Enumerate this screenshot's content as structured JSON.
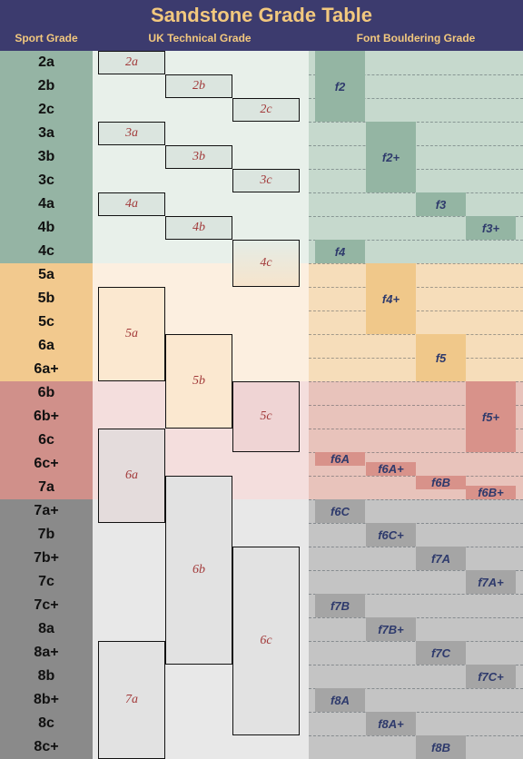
{
  "title": "Sandstone Grade Table",
  "headers": {
    "sport": "Sport Grade",
    "uk": "UK Technical Grade",
    "font": "Font Bouldering Grade"
  },
  "sport_grades": [
    "2a",
    "2b",
    "2c",
    "3a",
    "3b",
    "3c",
    "4a",
    "4b",
    "4c",
    "5a",
    "5b",
    "5c",
    "6a",
    "6a+",
    "6b",
    "6b+",
    "6c",
    "6c+",
    "7a",
    "7a+",
    "7b",
    "7b+",
    "7c",
    "7c+",
    "8a",
    "8a+",
    "8b",
    "8b+",
    "8c",
    "8c+"
  ],
  "uk_grades": [
    {
      "label": "2a",
      "col": 0,
      "start": 0,
      "end": 0
    },
    {
      "label": "2b",
      "col": 1,
      "start": 1,
      "end": 1
    },
    {
      "label": "2c",
      "col": 2,
      "start": 2,
      "end": 2
    },
    {
      "label": "3a",
      "col": 0,
      "start": 3,
      "end": 3
    },
    {
      "label": "3b",
      "col": 1,
      "start": 4,
      "end": 4
    },
    {
      "label": "3c",
      "col": 2,
      "start": 5,
      "end": 5
    },
    {
      "label": "4a",
      "col": 0,
      "start": 6,
      "end": 6
    },
    {
      "label": "4b",
      "col": 1,
      "start": 7,
      "end": 7
    },
    {
      "label": "4c",
      "col": 2,
      "start": 8,
      "end": 9
    },
    {
      "label": "5a",
      "col": 0,
      "start": 10,
      "end": 13
    },
    {
      "label": "5b",
      "col": 1,
      "start": 12,
      "end": 15
    },
    {
      "label": "5c",
      "col": 2,
      "start": 14,
      "end": 16
    },
    {
      "label": "6a",
      "col": 0,
      "start": 16,
      "end": 19
    },
    {
      "label": "6b",
      "col": 1,
      "start": 18,
      "end": 25
    },
    {
      "label": "6c",
      "col": 2,
      "start": 21,
      "end": 28
    },
    {
      "label": "7a",
      "col": 0,
      "start": 25,
      "end": 29
    }
  ],
  "font_grades": [
    {
      "label": "f2",
      "col": 0,
      "start": 0,
      "end": 2
    },
    {
      "label": "f2+",
      "col": 1,
      "start": 3,
      "end": 5
    },
    {
      "label": "f3",
      "col": 2,
      "start": 6,
      "end": 6
    },
    {
      "label": "f3+",
      "col": 3,
      "start": 7,
      "end": 7
    },
    {
      "label": "f4",
      "col": 0,
      "start": 8,
      "end": 8
    },
    {
      "label": "f4+",
      "col": 1,
      "start": 9,
      "end": 11
    },
    {
      "label": "f5",
      "col": 2,
      "start": 12,
      "end": 13
    },
    {
      "label": "f5+",
      "col": 3,
      "start": 14,
      "end": 16
    },
    {
      "label": "f6A",
      "col": 0,
      "start": 17,
      "end": 17,
      "half": "top"
    },
    {
      "label": "f6A+",
      "col": 1,
      "start": 17,
      "end": 17,
      "half": "bottom"
    },
    {
      "label": "f6B",
      "col": 2,
      "start": 18,
      "end": 18,
      "half": "top"
    },
    {
      "label": "f6B+",
      "col": 3,
      "start": 18,
      "end": 18,
      "half": "bottom"
    },
    {
      "label": "f6C",
      "col": 0,
      "start": 19,
      "end": 19
    },
    {
      "label": "f6C+",
      "col": 1,
      "start": 20,
      "end": 20
    },
    {
      "label": "f7A",
      "col": 2,
      "start": 21,
      "end": 21
    },
    {
      "label": "f7A+",
      "col": 3,
      "start": 22,
      "end": 22
    },
    {
      "label": "f7B",
      "col": 0,
      "start": 23,
      "end": 23
    },
    {
      "label": "f7B+",
      "col": 1,
      "start": 24,
      "end": 24
    },
    {
      "label": "f7C",
      "col": 2,
      "start": 25,
      "end": 25
    },
    {
      "label": "f7C+",
      "col": 3,
      "start": 26,
      "end": 26
    },
    {
      "label": "f8A",
      "col": 0,
      "start": 27,
      "end": 27
    },
    {
      "label": "f8A+",
      "col": 1,
      "start": 28,
      "end": 28
    },
    {
      "label": "f8B",
      "col": 2,
      "start": 29,
      "end": 29
    }
  ],
  "bands": [
    {
      "start": 0,
      "end": 8,
      "sport_color": "#95b4a4",
      "font_bg": "#c6d9cd",
      "font_box": "#94b5a3",
      "uk_bg": "#e8f0ea"
    },
    {
      "start": 9,
      "end": 13,
      "sport_color": "#f2c98e",
      "font_bg": "#f6ddba",
      "font_box": "#f0c88a",
      "uk_bg": "#fcefe0"
    },
    {
      "start": 14,
      "end": 18,
      "sport_color": "#d0908a",
      "font_bg": "#e8c3bb",
      "font_box": "#d8928a",
      "uk_bg": "#f4dedd"
    },
    {
      "start": 19,
      "end": 29,
      "sport_color": "#8a8a8a",
      "font_bg": "#c4c4c4",
      "font_box": "#a5a5a5",
      "uk_bg": "#e8e8e8"
    }
  ]
}
